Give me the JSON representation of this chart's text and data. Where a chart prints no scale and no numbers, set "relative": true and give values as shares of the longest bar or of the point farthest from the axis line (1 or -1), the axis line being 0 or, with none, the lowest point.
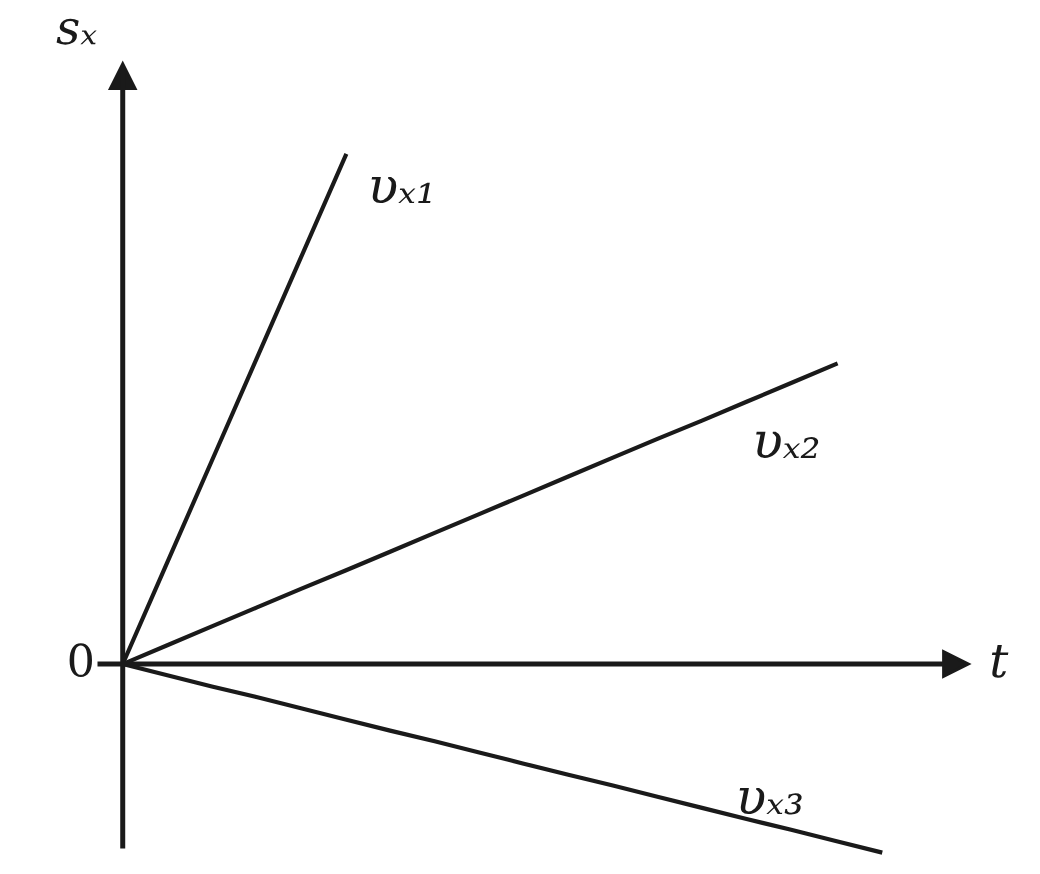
{
  "chart_data": {
    "type": "line",
    "relative": true,
    "xlabel": "t",
    "ylabel": "sₓ",
    "annotations": [
      "0"
    ],
    "marker": "none",
    "line_style": "solid",
    "categories": [
      null,
      null,
      null,
      null,
      null,
      null,
      null,
      null,
      null,
      null,
      null,
      null,
      null,
      null,
      null,
      null,
      null,
      null
    ],
    "series": [
      {
        "name": "υₓ₁",
        "color": "#1a1a1a",
        "values": [
          0,
          0.2,
          0.4,
          0.6,
          0.8,
          1,
          null,
          null,
          null,
          null,
          null,
          null,
          null,
          null,
          null,
          null,
          null,
          null
        ]
      },
      {
        "name": "υₓ₂",
        "color": "#1a1a1a",
        "values": [
          0,
          0.037,
          0.074,
          0.111,
          0.148,
          0.184,
          0.221,
          0.258,
          0.295,
          0.332,
          0.369,
          0.406,
          0.443,
          0.479,
          0.516,
          0.553,
          0.59,
          null
        ]
      },
      {
        "name": "υₓ₃",
        "color": "#1a1a1a",
        "values": [
          0,
          -0.022,
          -0.044,
          -0.065,
          -0.087,
          -0.109,
          -0.131,
          -0.152,
          -0.174,
          -0.196,
          -0.218,
          -0.239,
          -0.261,
          -0.283,
          -0.305,
          -0.326,
          -0.348,
          -0.37
        ]
      }
    ]
  }
}
